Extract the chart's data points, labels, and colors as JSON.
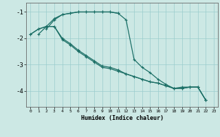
{
  "xlabel": "Humidex (Indice chaleur)",
  "bg_color": "#cce8e4",
  "grid_color": "#99cccc",
  "line_color": "#1a6e65",
  "xlim": [
    -0.5,
    23.5
  ],
  "ylim": [
    -4.6,
    -0.65
  ],
  "yticks": [
    -4,
    -3,
    -2,
    -1
  ],
  "xticks": [
    0,
    1,
    2,
    3,
    4,
    5,
    6,
    7,
    8,
    9,
    10,
    11,
    12,
    13,
    14,
    15,
    16,
    17,
    18,
    19,
    20,
    21,
    22,
    23
  ],
  "series": [
    [
      null,
      -1.85,
      -1.55,
      -1.25,
      -1.1,
      -1.05,
      -1.0,
      -1.0,
      -1.0,
      -1.0,
      -1.0,
      -1.05,
      -1.3,
      -2.8,
      -3.1,
      -3.3,
      -3.55,
      -3.75,
      -3.9,
      -3.85,
      -3.85,
      -3.85,
      -4.35,
      null
    ],
    [
      null,
      null,
      -1.65,
      -1.3,
      -1.1,
      -1.05,
      -1.0,
      -1.0,
      -1.0,
      -1.0,
      -1.0,
      -1.05,
      null,
      null,
      null,
      null,
      null,
      null,
      null,
      null,
      null,
      null,
      null,
      null
    ],
    [
      -1.85,
      -1.65,
      -1.55,
      -1.55,
      -2.0,
      -2.2,
      -2.45,
      -2.65,
      -2.85,
      -3.05,
      -3.1,
      -3.2,
      -3.35,
      -3.45,
      -3.55,
      -3.65,
      -3.7,
      -3.8,
      -3.9,
      -3.9,
      -3.85,
      -3.85,
      -4.35,
      null
    ],
    [
      -1.85,
      -1.65,
      -1.55,
      -1.55,
      -2.05,
      -2.25,
      -2.5,
      -2.7,
      -2.9,
      -3.1,
      -3.15,
      -3.25,
      -3.35,
      -3.45,
      -3.55,
      -3.65,
      -3.7,
      -3.8,
      -3.9,
      -3.9,
      -3.85,
      -3.85,
      -4.35,
      null
    ]
  ]
}
